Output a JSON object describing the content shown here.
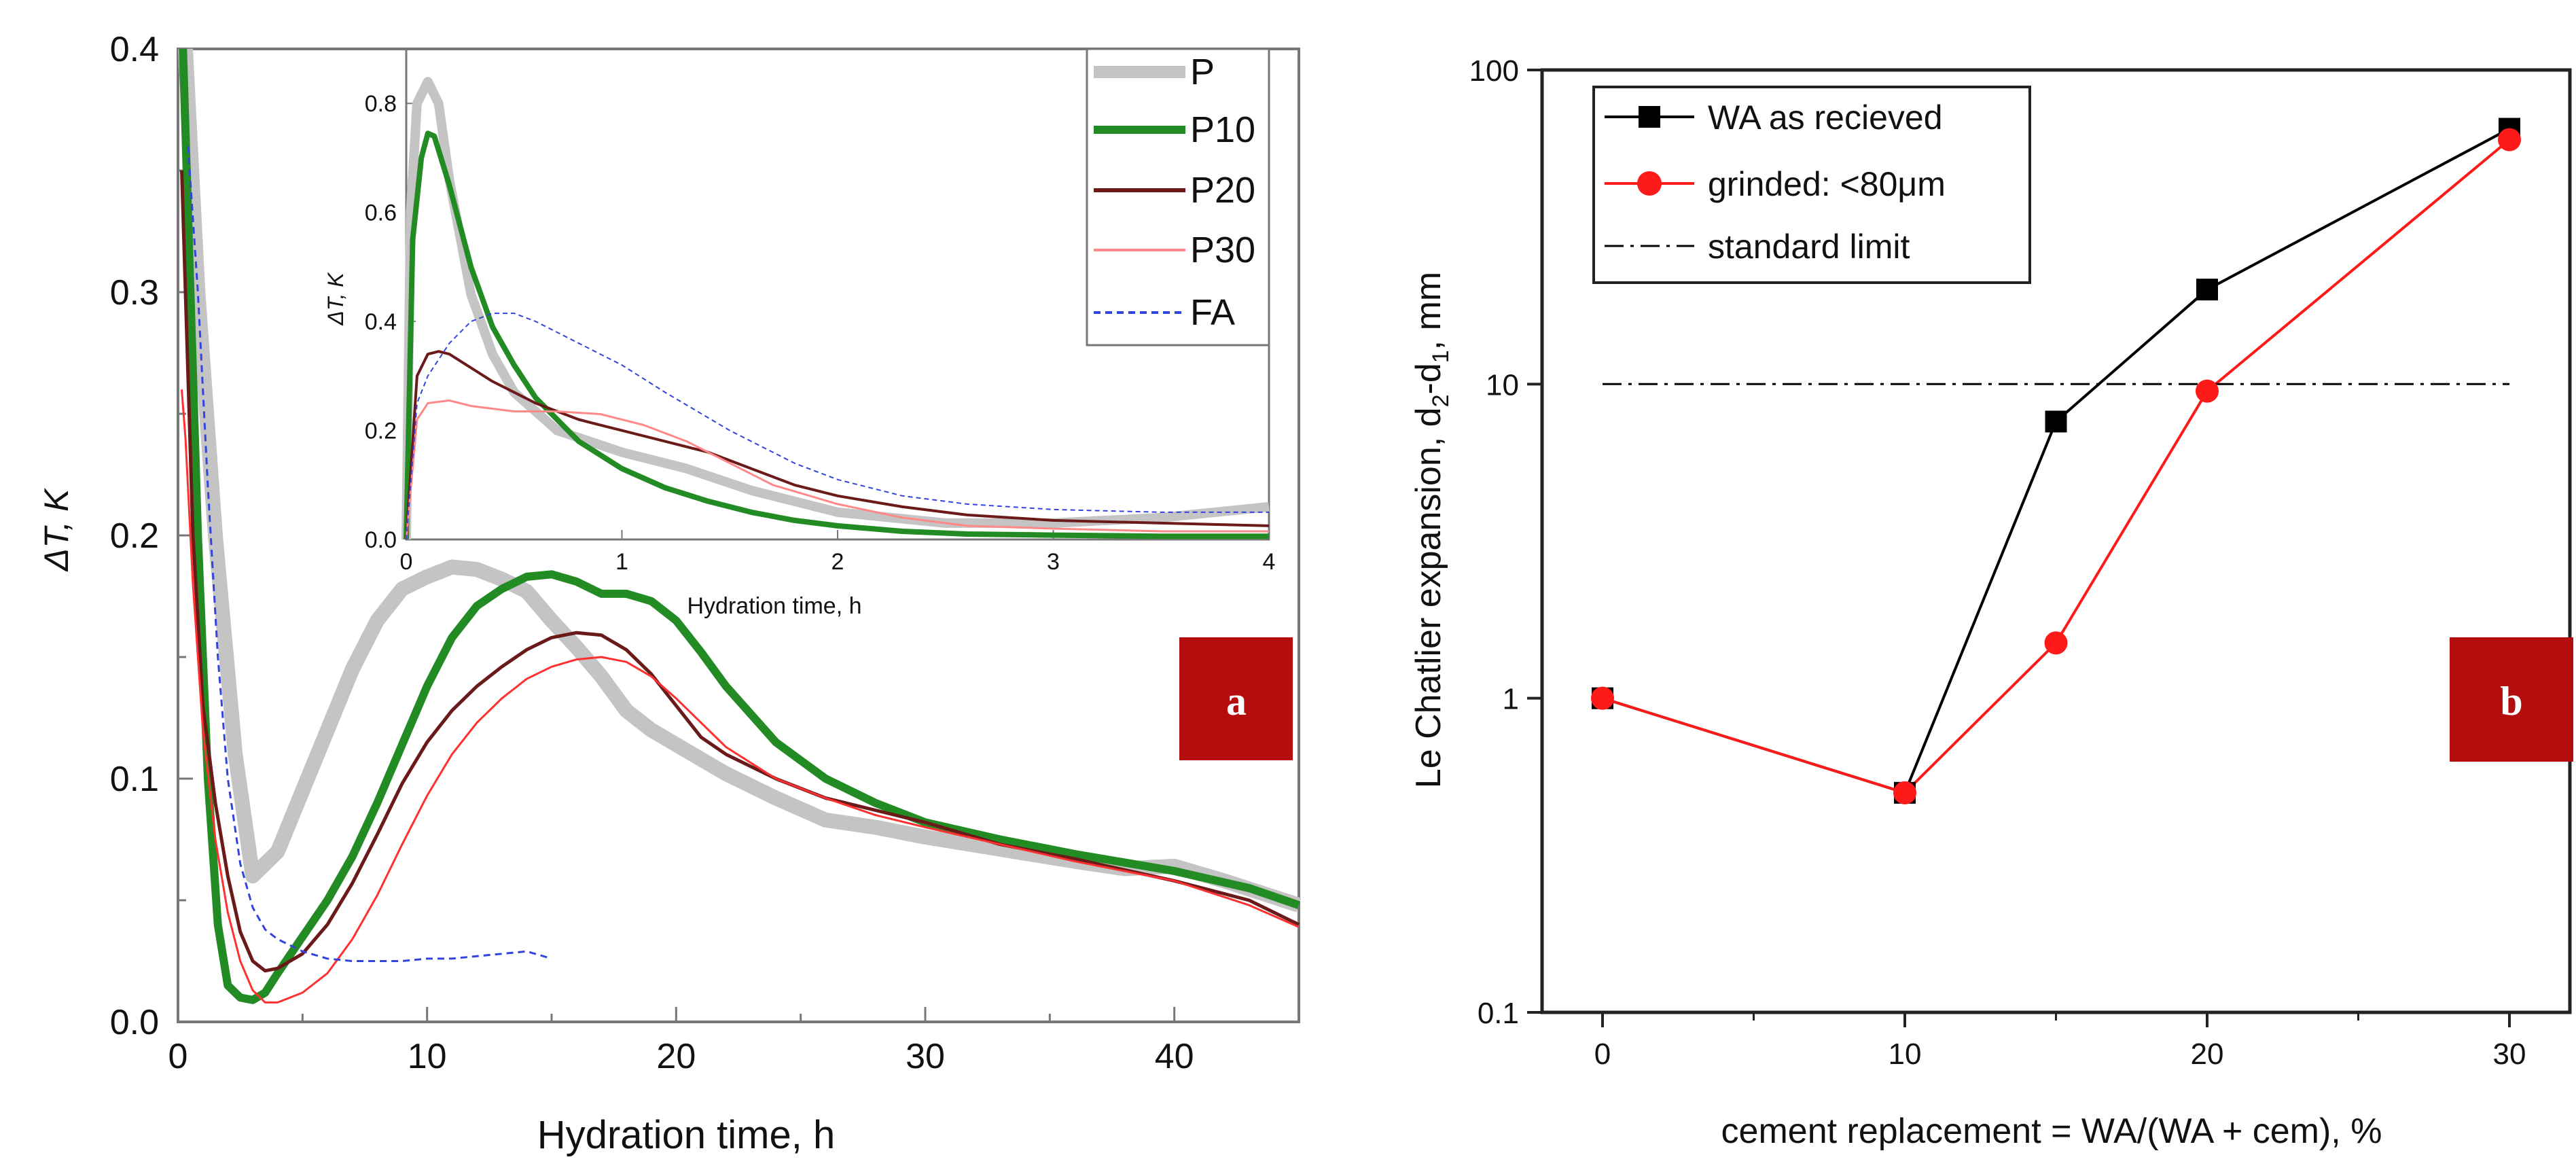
{
  "chart_data": [
    {
      "type": "line",
      "panel_label": "a",
      "xlabel": "Hydration time, h",
      "ylabel": "ΔT, K",
      "xlim": [
        0,
        45
      ],
      "ylim": [
        0,
        0.4
      ],
      "x_ticks": [
        "0",
        "10",
        "20",
        "30",
        "40"
      ],
      "y_ticks": [
        "0.0",
        "0.1",
        "0.2",
        "0.3",
        "0.4"
      ],
      "legend": [
        "P",
        "P10",
        "P20",
        "P30",
        "FA"
      ],
      "series": [
        {
          "name": "P",
          "color": "#c4c4c4",
          "x": [
            0.3,
            0.8,
            1.5,
            2.3,
            3,
            4,
            5,
            6,
            7,
            8,
            9,
            10,
            11,
            12,
            13,
            14,
            15,
            16,
            17,
            18,
            19,
            20,
            21,
            22,
            24,
            26,
            28,
            30,
            33,
            36,
            38,
            40,
            42,
            45
          ],
          "y": [
            0.4,
            0.3,
            0.2,
            0.11,
            0.06,
            0.07,
            0.095,
            0.12,
            0.145,
            0.165,
            0.178,
            0.183,
            0.187,
            0.186,
            0.182,
            0.177,
            0.165,
            0.154,
            0.142,
            0.128,
            0.12,
            0.114,
            0.108,
            0.102,
            0.092,
            0.083,
            0.08,
            0.076,
            0.071,
            0.066,
            0.063,
            0.064,
            0.058,
            0.048
          ]
        },
        {
          "name": "P10",
          "color": "#238b23",
          "x": [
            0.2,
            0.5,
            0.8,
            1.2,
            1.6,
            2,
            2.5,
            3,
            3.5,
            4,
            5,
            6,
            7,
            8,
            9,
            10,
            11,
            12,
            13,
            14,
            15,
            16,
            17,
            18,
            19,
            20,
            21,
            22,
            24,
            26,
            28,
            30,
            33,
            36,
            40,
            43,
            45
          ],
          "y": [
            0.4,
            0.3,
            0.2,
            0.1,
            0.04,
            0.015,
            0.01,
            0.009,
            0.012,
            0.02,
            0.035,
            0.05,
            0.068,
            0.09,
            0.114,
            0.138,
            0.158,
            0.171,
            0.178,
            0.183,
            0.184,
            0.181,
            0.176,
            0.176,
            0.173,
            0.165,
            0.152,
            0.138,
            0.115,
            0.1,
            0.09,
            0.082,
            0.075,
            0.069,
            0.062,
            0.055,
            0.048
          ]
        },
        {
          "name": "P20",
          "color": "#6b1a1a",
          "x": [
            0.15,
            0.3,
            0.6,
            1.0,
            1.5,
            2,
            2.5,
            3,
            3.5,
            4,
            5,
            6,
            7,
            8,
            9,
            10,
            11,
            12,
            13,
            14,
            15,
            16,
            17,
            18,
            19,
            20,
            21,
            22,
            24,
            26,
            28,
            30,
            33,
            36,
            40,
            43,
            45
          ],
          "y": [
            0.35,
            0.3,
            0.2,
            0.13,
            0.09,
            0.06,
            0.037,
            0.025,
            0.021,
            0.022,
            0.028,
            0.04,
            0.057,
            0.077,
            0.098,
            0.115,
            0.128,
            0.138,
            0.146,
            0.153,
            0.158,
            0.16,
            0.159,
            0.153,
            0.143,
            0.13,
            0.117,
            0.11,
            0.1,
            0.092,
            0.087,
            0.082,
            0.073,
            0.067,
            0.058,
            0.05,
            0.04
          ]
        },
        {
          "name": "P30",
          "color": "#ff3030",
          "x": [
            0.15,
            0.3,
            0.6,
            1.0,
            1.5,
            2,
            2.5,
            3,
            3.5,
            4,
            5,
            6,
            7,
            8,
            9,
            10,
            11,
            12,
            13,
            14,
            15,
            16,
            17,
            18,
            19,
            20,
            22,
            24,
            26,
            28,
            30,
            33,
            36,
            40,
            43,
            45
          ],
          "y": [
            0.26,
            0.24,
            0.18,
            0.12,
            0.075,
            0.045,
            0.025,
            0.013,
            0.008,
            0.008,
            0.012,
            0.02,
            0.034,
            0.052,
            0.073,
            0.093,
            0.11,
            0.123,
            0.133,
            0.141,
            0.146,
            0.149,
            0.15,
            0.148,
            0.142,
            0.133,
            0.113,
            0.1,
            0.092,
            0.085,
            0.08,
            0.073,
            0.066,
            0.058,
            0.048,
            0.039
          ]
        },
        {
          "name": "FA",
          "color": "#3344dd",
          "x": [
            0.4,
            0.8,
            1.2,
            1.6,
            2,
            2.5,
            3,
            3.5,
            4,
            5,
            6,
            7,
            8,
            9,
            10,
            11,
            12,
            13,
            14,
            15
          ],
          "y": [
            0.36,
            0.3,
            0.22,
            0.15,
            0.1,
            0.065,
            0.047,
            0.038,
            0.034,
            0.029,
            0.026,
            0.025,
            0.025,
            0.025,
            0.026,
            0.026,
            0.027,
            0.028,
            0.029,
            0.026
          ]
        }
      ],
      "inset": {
        "xlabel": "Hydration time, h",
        "ylabel": "ΔT, K",
        "xlim": [
          0,
          4
        ],
        "ylim": [
          0,
          0.9
        ],
        "x_ticks": [
          "0",
          "1",
          "2",
          "3",
          "4"
        ],
        "y_ticks": [
          "0.0",
          "0.2",
          "0.4",
          "0.6",
          "0.8"
        ],
        "series": [
          {
            "name": "P",
            "x": [
              0,
              0.02,
              0.05,
              0.1,
              0.15,
              0.2,
              0.3,
              0.4,
              0.5,
              0.7,
              1.0,
              1.3,
              1.6,
              2.0,
              2.5,
              3.0,
              3.5,
              4.0
            ],
            "y": [
              0,
              0.6,
              0.8,
              0.84,
              0.8,
              0.66,
              0.45,
              0.34,
              0.27,
              0.2,
              0.16,
              0.13,
              0.09,
              0.05,
              0.03,
              0.03,
              0.04,
              0.06
            ]
          },
          {
            "name": "P10",
            "x": [
              0,
              0.03,
              0.07,
              0.1,
              0.13,
              0.2,
              0.3,
              0.4,
              0.5,
              0.6,
              0.8,
              1.0,
              1.2,
              1.4,
              1.6,
              1.8,
              2.0,
              2.3,
              2.6,
              3.0,
              3.5,
              4.0
            ],
            "y": [
              0,
              0.55,
              0.7,
              0.745,
              0.74,
              0.65,
              0.5,
              0.39,
              0.32,
              0.26,
              0.18,
              0.13,
              0.095,
              0.07,
              0.05,
              0.035,
              0.025,
              0.015,
              0.01,
              0.008,
              0.006,
              0.006
            ]
          },
          {
            "name": "P20",
            "x": [
              0,
              0.05,
              0.1,
              0.15,
              0.2,
              0.3,
              0.4,
              0.6,
              0.8,
              1.0,
              1.2,
              1.4,
              1.6,
              1.8,
              2.0,
              2.3,
              2.6,
              3.0,
              3.5,
              4.0
            ],
            "y": [
              0,
              0.3,
              0.34,
              0.345,
              0.34,
              0.315,
              0.29,
              0.25,
              0.22,
              0.2,
              0.18,
              0.16,
              0.13,
              0.1,
              0.08,
              0.06,
              0.045,
              0.035,
              0.03,
              0.025
            ]
          },
          {
            "name": "P30",
            "x": [
              0,
              0.05,
              0.1,
              0.2,
              0.3,
              0.5,
              0.7,
              0.9,
              1.1,
              1.3,
              1.5,
              1.7,
              2.0,
              2.3,
              2.6,
              3.0,
              3.5,
              4.0
            ],
            "y": [
              0,
              0.22,
              0.25,
              0.255,
              0.245,
              0.235,
              0.235,
              0.23,
              0.21,
              0.18,
              0.14,
              0.1,
              0.065,
              0.04,
              0.025,
              0.02,
              0.015,
              0.015
            ]
          },
          {
            "name": "FA",
            "x": [
              0,
              0.05,
              0.1,
              0.2,
              0.3,
              0.4,
              0.5,
              0.6,
              0.8,
              1.0,
              1.2,
              1.5,
              1.8,
              2.0,
              2.3,
              2.6,
              3.0,
              3.5,
              4.0
            ],
            "y": [
              0,
              0.25,
              0.3,
              0.36,
              0.4,
              0.415,
              0.415,
              0.4,
              0.36,
              0.32,
              0.27,
              0.2,
              0.14,
              0.11,
              0.08,
              0.065,
              0.055,
              0.05,
              0.05
            ]
          }
        ]
      }
    },
    {
      "type": "line",
      "panel_label": "b",
      "xlabel": "cement replacement = WA/(WA + cem), %",
      "ylabel": "Le Chatlier expansion, d",
      "ylabel_sub1": "2",
      "ylabel_mid": "-d",
      "ylabel_sub2": "1",
      "ylabel_end": ", mm",
      "yscale": "log",
      "xlim": [
        -2,
        32
      ],
      "ylim": [
        0.1,
        100
      ],
      "x_ticks": [
        "0",
        "10",
        "20",
        "30"
      ],
      "x_tick_values": [
        0,
        10,
        20,
        30
      ],
      "y_ticks": [
        "0.1",
        "1",
        "10",
        "100"
      ],
      "y_tick_values": [
        0.1,
        1,
        10,
        100
      ],
      "legend": [
        "WA as recieved",
        "grinded: <80μm",
        "standard limit"
      ],
      "series": [
        {
          "name": "WA as recieved",
          "color": "#000000",
          "marker": "square",
          "x": [
            0,
            10,
            15,
            20,
            30
          ],
          "y": [
            1.0,
            0.5,
            7.6,
            20,
            65
          ]
        },
        {
          "name": "grinded: <80μm",
          "color": "#ff1a1a",
          "marker": "circle",
          "x": [
            0,
            10,
            15,
            20,
            30
          ],
          "y": [
            1.0,
            0.5,
            1.5,
            9.5,
            60
          ]
        },
        {
          "name": "standard limit",
          "color": "#000000",
          "marker": "none",
          "style": "dash-dot",
          "x": [
            0,
            30
          ],
          "y": [
            10,
            10
          ]
        }
      ]
    }
  ],
  "colors": {
    "badge": "#b30d0d",
    "grinded_marker": "#ff1a1a",
    "received_marker": "#000000",
    "inset_P": "#c4c4c4",
    "inset_P10": "#238b23",
    "inset_P20": "#6b1a1a",
    "inset_P30": "#ff8888",
    "inset_FA": "#3344dd"
  }
}
